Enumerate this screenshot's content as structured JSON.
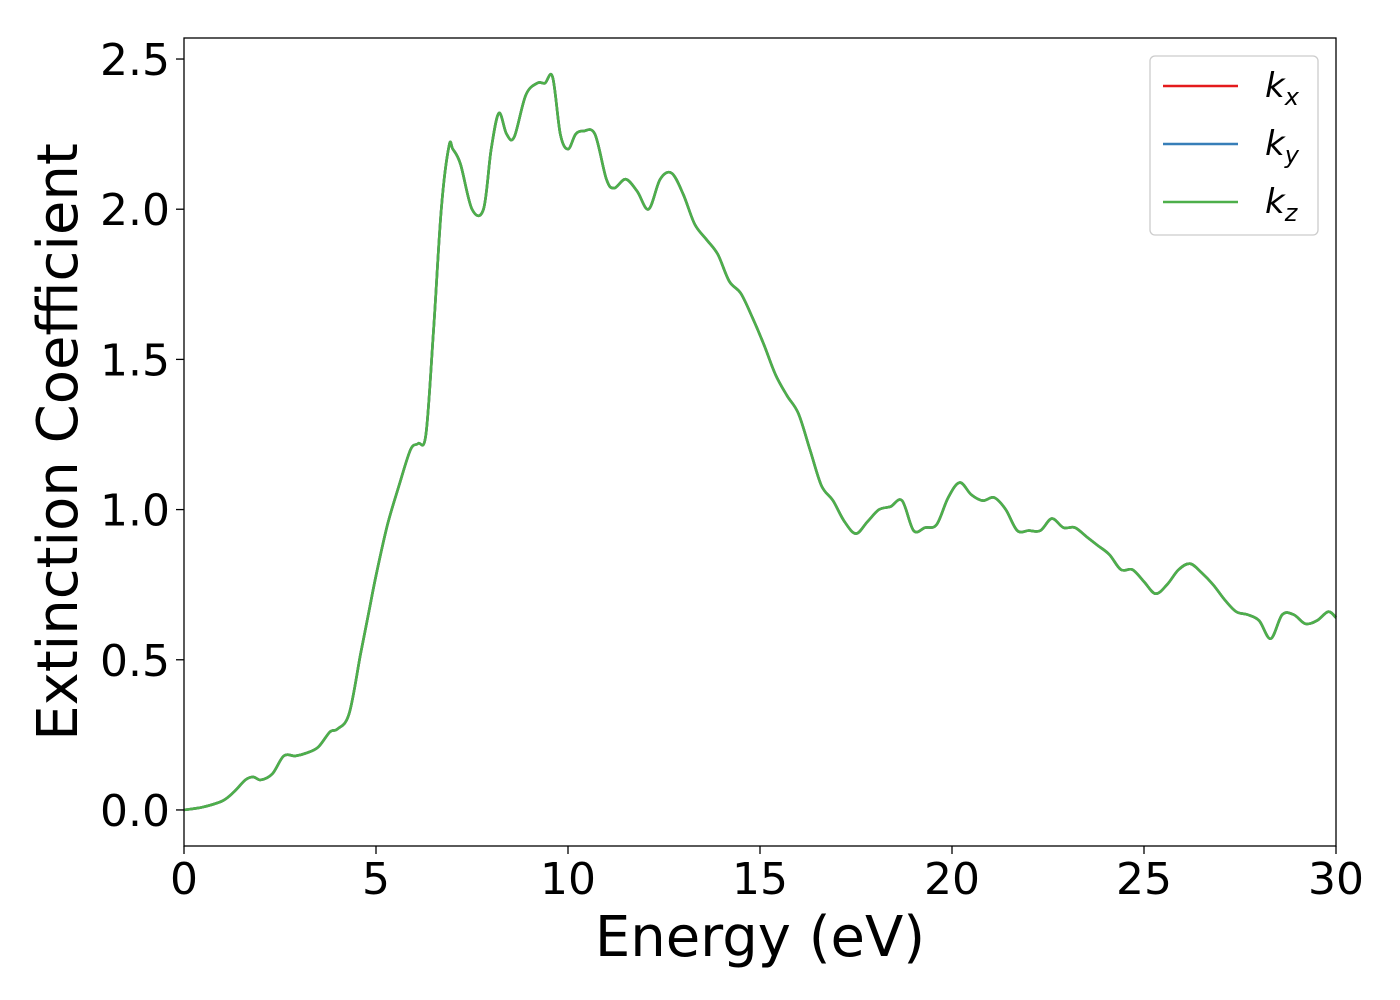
{
  "chart_data": {
    "type": "line",
    "title": "",
    "xlabel": "Energy (eV)",
    "ylabel": "Extinction Coefficient",
    "xlim": [
      0,
      30
    ],
    "ylim": [
      -0.12,
      2.57
    ],
    "xticks": [
      0,
      5,
      10,
      15,
      20,
      25,
      30
    ],
    "xtick_labels": [
      "0",
      "5",
      "10",
      "15",
      "20",
      "25",
      "30"
    ],
    "yticks": [
      0.0,
      0.5,
      1.0,
      1.5,
      2.0,
      2.5
    ],
    "ytick_labels": [
      "0.0",
      "0.5",
      "1.0",
      "1.5",
      "2.0",
      "2.5"
    ],
    "grid": false,
    "legend_position": "top-right",
    "x": [
      0,
      0.5,
      1.0,
      1.3,
      1.6,
      1.8,
      2.0,
      2.3,
      2.6,
      2.9,
      3.2,
      3.5,
      3.8,
      4.0,
      4.3,
      4.6,
      4.8,
      5.0,
      5.3,
      5.6,
      5.9,
      6.1,
      6.3,
      6.5,
      6.7,
      6.9,
      7.0,
      7.2,
      7.5,
      7.8,
      8.0,
      8.2,
      8.4,
      8.6,
      8.9,
      9.2,
      9.4,
      9.6,
      9.8,
      10.0,
      10.2,
      10.4,
      10.7,
      11.0,
      11.2,
      11.5,
      11.8,
      12.1,
      12.4,
      12.7,
      13.0,
      13.3,
      13.6,
      13.9,
      14.2,
      14.5,
      14.8,
      15.1,
      15.4,
      15.7,
      16.0,
      16.3,
      16.6,
      16.9,
      17.2,
      17.5,
      17.8,
      18.1,
      18.4,
      18.7,
      19.0,
      19.3,
      19.6,
      19.9,
      20.2,
      20.5,
      20.8,
      21.1,
      21.4,
      21.7,
      22.0,
      22.3,
      22.6,
      22.9,
      23.2,
      23.5,
      23.8,
      24.1,
      24.4,
      24.7,
      25.0,
      25.3,
      25.6,
      25.9,
      26.2,
      26.5,
      26.8,
      27.1,
      27.4,
      27.7,
      28.0,
      28.3,
      28.6,
      28.9,
      29.2,
      29.5,
      29.8,
      30.0
    ],
    "series": [
      {
        "name": "k_x",
        "color": "#e41a1c",
        "values": [
          0.0,
          0.01,
          0.03,
          0.06,
          0.1,
          0.11,
          0.1,
          0.12,
          0.18,
          0.18,
          0.19,
          0.21,
          0.26,
          0.27,
          0.32,
          0.52,
          0.65,
          0.78,
          0.95,
          1.08,
          1.2,
          1.22,
          1.25,
          1.6,
          2.0,
          2.21,
          2.2,
          2.15,
          2.0,
          2.0,
          2.2,
          2.32,
          2.25,
          2.24,
          2.38,
          2.42,
          2.42,
          2.44,
          2.25,
          2.2,
          2.25,
          2.26,
          2.25,
          2.1,
          2.07,
          2.1,
          2.06,
          2.0,
          2.1,
          2.12,
          2.05,
          1.95,
          1.9,
          1.85,
          1.76,
          1.72,
          1.64,
          1.55,
          1.45,
          1.38,
          1.32,
          1.2,
          1.08,
          1.03,
          0.96,
          0.92,
          0.96,
          1.0,
          1.01,
          1.03,
          0.93,
          0.94,
          0.95,
          1.04,
          1.09,
          1.05,
          1.03,
          1.04,
          1.0,
          0.93,
          0.93,
          0.93,
          0.97,
          0.94,
          0.94,
          0.91,
          0.88,
          0.85,
          0.8,
          0.8,
          0.76,
          0.72,
          0.75,
          0.8,
          0.82,
          0.79,
          0.75,
          0.7,
          0.66,
          0.65,
          0.63,
          0.57,
          0.65,
          0.65,
          0.62,
          0.63,
          0.66,
          0.64
        ]
      },
      {
        "name": "k_y",
        "color": "#377eb8",
        "values": [
          0.0,
          0.01,
          0.03,
          0.06,
          0.1,
          0.11,
          0.1,
          0.12,
          0.18,
          0.18,
          0.19,
          0.21,
          0.26,
          0.27,
          0.32,
          0.52,
          0.65,
          0.78,
          0.95,
          1.08,
          1.2,
          1.22,
          1.25,
          1.6,
          2.0,
          2.21,
          2.2,
          2.15,
          2.0,
          2.0,
          2.2,
          2.32,
          2.25,
          2.24,
          2.38,
          2.42,
          2.42,
          2.44,
          2.25,
          2.2,
          2.25,
          2.26,
          2.25,
          2.1,
          2.07,
          2.1,
          2.06,
          2.0,
          2.1,
          2.12,
          2.05,
          1.95,
          1.9,
          1.85,
          1.76,
          1.72,
          1.64,
          1.55,
          1.45,
          1.38,
          1.32,
          1.2,
          1.08,
          1.03,
          0.96,
          0.92,
          0.96,
          1.0,
          1.01,
          1.03,
          0.93,
          0.94,
          0.95,
          1.04,
          1.09,
          1.05,
          1.03,
          1.04,
          1.0,
          0.93,
          0.93,
          0.93,
          0.97,
          0.94,
          0.94,
          0.91,
          0.88,
          0.85,
          0.8,
          0.8,
          0.76,
          0.72,
          0.75,
          0.8,
          0.82,
          0.79,
          0.75,
          0.7,
          0.66,
          0.65,
          0.63,
          0.57,
          0.65,
          0.65,
          0.62,
          0.63,
          0.66,
          0.64
        ]
      },
      {
        "name": "k_z",
        "color": "#4daf4a",
        "values": [
          0.0,
          0.01,
          0.03,
          0.06,
          0.1,
          0.11,
          0.1,
          0.12,
          0.18,
          0.18,
          0.19,
          0.21,
          0.26,
          0.27,
          0.32,
          0.52,
          0.65,
          0.78,
          0.95,
          1.08,
          1.2,
          1.22,
          1.25,
          1.6,
          2.0,
          2.21,
          2.2,
          2.15,
          2.0,
          2.0,
          2.2,
          2.32,
          2.25,
          2.24,
          2.38,
          2.42,
          2.42,
          2.44,
          2.25,
          2.2,
          2.25,
          2.26,
          2.25,
          2.1,
          2.07,
          2.1,
          2.06,
          2.0,
          2.1,
          2.12,
          2.05,
          1.95,
          1.9,
          1.85,
          1.76,
          1.72,
          1.64,
          1.55,
          1.45,
          1.38,
          1.32,
          1.2,
          1.08,
          1.03,
          0.96,
          0.92,
          0.96,
          1.0,
          1.01,
          1.03,
          0.93,
          0.94,
          0.95,
          1.04,
          1.09,
          1.05,
          1.03,
          1.04,
          1.0,
          0.93,
          0.93,
          0.93,
          0.97,
          0.94,
          0.94,
          0.91,
          0.88,
          0.85,
          0.8,
          0.8,
          0.76,
          0.72,
          0.75,
          0.8,
          0.82,
          0.79,
          0.75,
          0.7,
          0.66,
          0.65,
          0.63,
          0.57,
          0.65,
          0.65,
          0.62,
          0.63,
          0.66,
          0.64
        ]
      }
    ],
    "legend": [
      {
        "base": "k",
        "sub": "x",
        "color": "#e41a1c"
      },
      {
        "base": "k",
        "sub": "y",
        "color": "#377eb8"
      },
      {
        "base": "k",
        "sub": "z",
        "color": "#4daf4a"
      }
    ]
  }
}
